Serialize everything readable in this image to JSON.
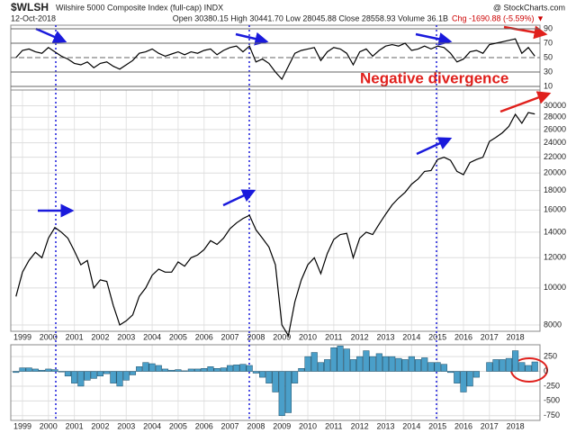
{
  "header": {
    "symbol": "$WLSH",
    "name": "Wilshire 5000 Composite Index (full-cap) INDX",
    "date": "12-Oct-2018",
    "source": "@ StockCharts.com",
    "quote": "Open 30380.15 High 30441.70 Low 28045.88 Close 28558.93 Volume 36.1B",
    "change": "Chg -1690.88 (-5.59%) ▼"
  },
  "chart_data": [
    {
      "type": "line",
      "annotation": "Negative divergence",
      "color": "#000000",
      "xlim": [
        1998.55,
        2018.95
      ],
      "ylim": [
        5,
        95
      ],
      "yticks": [
        10,
        30,
        50,
        70,
        90
      ],
      "x": [
        1998.75,
        1999,
        1999.25,
        1999.5,
        1999.75,
        2000,
        2000.25,
        2000.5,
        2000.75,
        2001,
        2001.25,
        2001.5,
        2001.75,
        2002,
        2002.25,
        2002.5,
        2002.75,
        2003,
        2003.25,
        2003.5,
        2003.75,
        2004,
        2004.25,
        2004.5,
        2004.75,
        2005,
        2005.25,
        2005.5,
        2005.75,
        2006,
        2006.25,
        2006.5,
        2006.75,
        2007,
        2007.25,
        2007.5,
        2007.75,
        2008,
        2008.25,
        2008.5,
        2008.75,
        2009,
        2009.25,
        2009.5,
        2009.75,
        2010,
        2010.25,
        2010.5,
        2010.75,
        2011,
        2011.25,
        2011.5,
        2011.75,
        2012,
        2012.25,
        2012.5,
        2012.75,
        2013,
        2013.25,
        2013.5,
        2013.75,
        2014,
        2014.25,
        2014.5,
        2014.75,
        2015,
        2015.25,
        2015.5,
        2015.75,
        2016,
        2016.25,
        2016.5,
        2016.75,
        2017,
        2017.25,
        2017.5,
        2017.75,
        2018,
        2018.25,
        2018.5,
        2018.75
      ],
      "values": [
        50,
        60,
        62,
        58,
        56,
        64,
        58,
        52,
        48,
        42,
        40,
        44,
        36,
        42,
        44,
        38,
        34,
        40,
        46,
        56,
        58,
        62,
        56,
        52,
        55,
        58,
        54,
        58,
        56,
        60,
        62,
        54,
        60,
        64,
        66,
        58,
        66,
        44,
        48,
        42,
        30,
        20,
        38,
        56,
        60,
        62,
        64,
        46,
        58,
        64,
        62,
        56,
        40,
        58,
        62,
        52,
        60,
        66,
        68,
        66,
        70,
        60,
        62,
        66,
        62,
        66,
        64,
        56,
        44,
        48,
        58,
        60,
        56,
        68,
        70,
        72,
        74,
        76,
        56,
        64,
        52
      ]
    },
    {
      "type": "line",
      "log": true,
      "color": "#000000",
      "xlim": [
        1998.55,
        2018.95
      ],
      "ylim": [
        7700,
        33000
      ],
      "yticks": [
        8000,
        10000,
        12000,
        14000,
        16000,
        18000,
        20000,
        22000,
        24000,
        26000,
        28000,
        30000
      ],
      "xticks": [
        1999,
        2000,
        2001,
        2002,
        2003,
        2004,
        2005,
        2006,
        2007,
        2008,
        2009,
        2010,
        2011,
        2012,
        2013,
        2014,
        2015,
        2016,
        2017,
        2018
      ],
      "x": [
        1998.75,
        1999,
        1999.25,
        1999.5,
        1999.75,
        2000,
        2000.25,
        2000.5,
        2000.75,
        2001,
        2001.25,
        2001.5,
        2001.75,
        2002,
        2002.25,
        2002.5,
        2002.75,
        2003,
        2003.25,
        2003.5,
        2003.75,
        2004,
        2004.25,
        2004.5,
        2004.75,
        2005,
        2005.25,
        2005.5,
        2005.75,
        2006,
        2006.25,
        2006.5,
        2006.75,
        2007,
        2007.25,
        2007.5,
        2007.75,
        2008,
        2008.25,
        2008.5,
        2008.75,
        2009,
        2009.25,
        2009.5,
        2009.75,
        2010,
        2010.25,
        2010.5,
        2010.75,
        2011,
        2011.25,
        2011.5,
        2011.75,
        2012,
        2012.25,
        2012.5,
        2012.75,
        2013,
        2013.25,
        2013.5,
        2013.75,
        2014,
        2014.25,
        2014.5,
        2014.75,
        2015,
        2015.25,
        2015.5,
        2015.75,
        2016,
        2016.25,
        2016.5,
        2016.75,
        2017,
        2017.25,
        2017.5,
        2017.75,
        2018,
        2018.25,
        2018.5,
        2018.75
      ],
      "values": [
        9500,
        11000,
        11800,
        12400,
        12000,
        13500,
        14400,
        14000,
        13500,
        12500,
        11500,
        11800,
        10000,
        10500,
        10400,
        9000,
        8000,
        8200,
        8500,
        9500,
        10000,
        10800,
        11200,
        11000,
        11000,
        11700,
        11400,
        12000,
        12200,
        12600,
        13300,
        13000,
        13500,
        14300,
        14800,
        15200,
        15500,
        14200,
        13500,
        12800,
        11500,
        8000,
        7500,
        9200,
        10500,
        11500,
        12000,
        10900,
        12300,
        13400,
        13800,
        13900,
        12000,
        13500,
        14000,
        13800,
        14700,
        15600,
        16500,
        17200,
        17800,
        18700,
        19300,
        20200,
        20300,
        21700,
        22000,
        21600,
        20200,
        19800,
        21300,
        21700,
        22000,
        24200,
        24800,
        25500,
        26500,
        28500,
        27000,
        28800,
        28560
      ]
    },
    {
      "type": "bar",
      "color": "#4a9fc9",
      "xlim": [
        1998.55,
        2018.95
      ],
      "ylim": [
        -830,
        450
      ],
      "yticks": [
        250,
        0,
        -250,
        -500,
        -750
      ],
      "xticks": [
        1999,
        2000,
        2001,
        2002,
        2003,
        2004,
        2005,
        2006,
        2007,
        2008,
        2009,
        2010,
        2011,
        2012,
        2013,
        2014,
        2015,
        2016,
        2017,
        2018
      ],
      "x": [
        1998.75,
        1999,
        1999.25,
        1999.5,
        1999.75,
        2000,
        2000.25,
        2000.5,
        2000.75,
        2001,
        2001.25,
        2001.5,
        2001.75,
        2002,
        2002.25,
        2002.5,
        2002.75,
        2003,
        2003.25,
        2003.5,
        2003.75,
        2004,
        2004.25,
        2004.5,
        2004.75,
        2005,
        2005.25,
        2005.5,
        2005.75,
        2006,
        2006.25,
        2006.5,
        2006.75,
        2007,
        2007.25,
        2007.5,
        2007.75,
        2008,
        2008.25,
        2008.5,
        2008.75,
        2009,
        2009.25,
        2009.5,
        2009.75,
        2010,
        2010.25,
        2010.5,
        2010.75,
        2011,
        2011.25,
        2011.5,
        2011.75,
        2012,
        2012.25,
        2012.5,
        2012.75,
        2013,
        2013.25,
        2013.5,
        2013.75,
        2014,
        2014.25,
        2014.5,
        2014.75,
        2015,
        2015.25,
        2015.5,
        2015.75,
        2016,
        2016.25,
        2016.5,
        2016.75,
        2017,
        2017.25,
        2017.5,
        2017.75,
        2018,
        2018.25,
        2018.5,
        2018.75
      ],
      "values": [
        -20,
        60,
        60,
        40,
        20,
        40,
        30,
        -10,
        -80,
        -200,
        -250,
        -150,
        -120,
        -80,
        -40,
        -200,
        -250,
        -150,
        -60,
        80,
        150,
        130,
        100,
        40,
        20,
        30,
        10,
        40,
        40,
        50,
        80,
        50,
        60,
        100,
        110,
        120,
        100,
        -30,
        -100,
        -200,
        -350,
        -750,
        -700,
        -200,
        50,
        250,
        320,
        150,
        200,
        400,
        430,
        380,
        200,
        250,
        350,
        250,
        300,
        250,
        250,
        220,
        200,
        250,
        200,
        230,
        150,
        150,
        120,
        -20,
        -200,
        -350,
        -250,
        -100,
        0,
        150,
        200,
        200,
        220,
        350,
        150,
        100,
        160
      ]
    }
  ]
}
